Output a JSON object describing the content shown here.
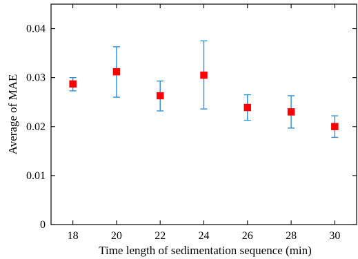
{
  "chart_data": {
    "type": "scatter",
    "xlabel": "Time length of sedimentation sequence (min)",
    "ylabel": "Average of MAE",
    "x": [
      18,
      20,
      22,
      24,
      26,
      28,
      30
    ],
    "y": [
      0.0287,
      0.0312,
      0.0263,
      0.0305,
      0.0239,
      0.023,
      0.02
    ],
    "y_error_upper": [
      0.03,
      0.0363,
      0.0293,
      0.0375,
      0.0265,
      0.0263,
      0.0222
    ],
    "y_error_lower": [
      0.0273,
      0.026,
      0.0232,
      0.0236,
      0.0213,
      0.0197,
      0.0178
    ],
    "xlim": [
      17,
      31
    ],
    "ylim": [
      0,
      0.045
    ],
    "x_ticks": [
      18,
      20,
      22,
      24,
      26,
      28,
      30
    ],
    "y_ticks": [
      0,
      0.01,
      0.02,
      0.03,
      0.04
    ],
    "x_tick_labels": [
      "18",
      "20",
      "22",
      "24",
      "26",
      "28",
      "30"
    ],
    "y_tick_labels": [
      "0",
      "0.01",
      "0.02",
      "0.03",
      "0.04"
    ],
    "grid": false,
    "legend": "none",
    "colors": {
      "marker": "#ff0000",
      "errorbar": "#2b8fd6",
      "axis": "#000000"
    }
  }
}
